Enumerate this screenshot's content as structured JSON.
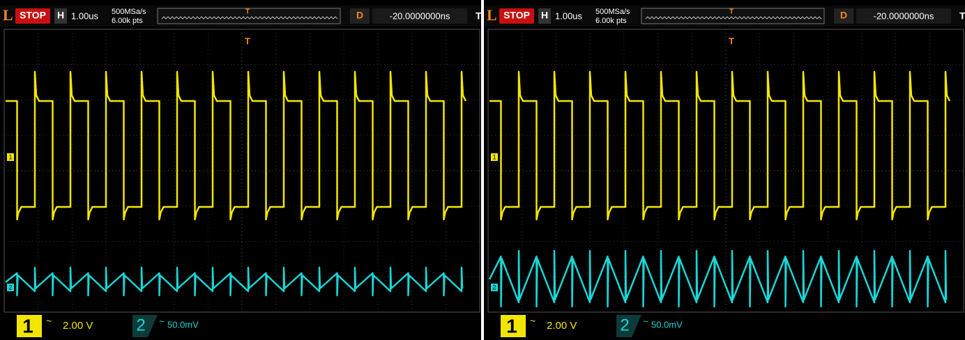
{
  "panels": [
    {
      "logo": "L",
      "status": "STOP",
      "h_label": "H",
      "timebase": "1.00us",
      "sample_rate": "500MSa/s",
      "points": "6.00k pts",
      "trigger_marker": "T",
      "d_label": "D",
      "delay": "-20.0000000ns",
      "trigger_label": "T",
      "channels": [
        {
          "marker": "1",
          "label": "1",
          "coupling": "~",
          "scale": "2.00 V"
        },
        {
          "marker": "2",
          "label": "2",
          "coupling": "~",
          "scale": "50.0mV"
        }
      ]
    },
    {
      "logo": "L",
      "status": "STOP",
      "h_label": "H",
      "timebase": "1.00us",
      "sample_rate": "500MSa/s",
      "points": "6.00k pts",
      "trigger_marker": "T",
      "d_label": "D",
      "delay": "-20.0000000ns",
      "trigger_label": "T",
      "channels": [
        {
          "marker": "1",
          "label": "1",
          "coupling": "~",
          "scale": "2.00 V"
        },
        {
          "marker": "2",
          "label": "2",
          "coupling": "~",
          "scale": "50.0mV"
        }
      ]
    }
  ]
}
